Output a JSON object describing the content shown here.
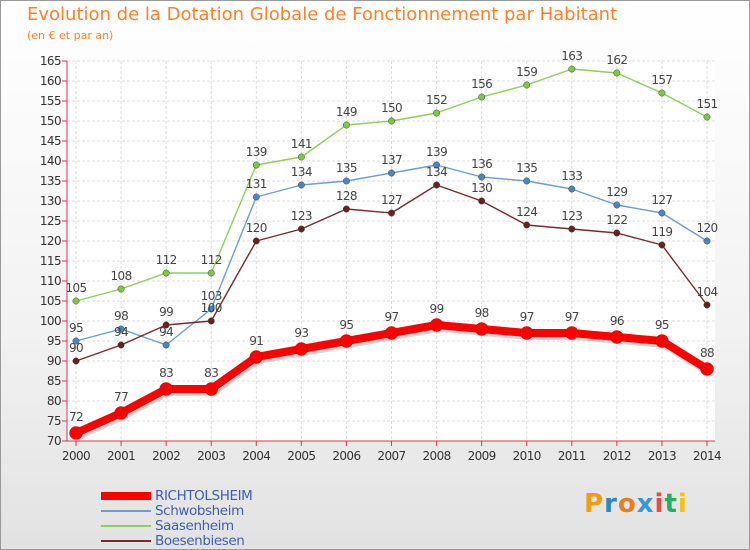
{
  "header": {
    "title": "Evolution de la Dotation Globale de Fonctionnement par Habitant",
    "subtitle": "(en € et par an)"
  },
  "brand": {
    "letters": [
      "P",
      "r",
      "o",
      "x",
      "i",
      "t",
      "i"
    ],
    "colors": [
      "#f39c12",
      "#2e86c1",
      "#e67e22",
      "#3498db",
      "#e74c3c",
      "#27ae60",
      "#f1c40f"
    ]
  },
  "chart_data": {
    "type": "line",
    "title": "Evolution de la Dotation Globale de Fonctionnement par Habitant",
    "subtitle": "(en € et par an)",
    "xlabel": "",
    "ylabel": "",
    "ylim": [
      70,
      165
    ],
    "ytick_step": 5,
    "grid": true,
    "legend_position": "bottom-left",
    "categories": [
      "2000",
      "2001",
      "2002",
      "2003",
      "2004",
      "2005",
      "2006",
      "2007",
      "2008",
      "2009",
      "2010",
      "2011",
      "2012",
      "2013",
      "2014"
    ],
    "series": [
      {
        "name": "Saasenheim",
        "color": "#8fce5b",
        "dot": "#7ac943",
        "bold": false,
        "values": [
          105,
          108,
          112,
          112,
          139,
          141,
          149,
          150,
          152,
          156,
          159,
          163,
          162,
          157,
          151
        ]
      },
      {
        "name": "Schwobsheim",
        "color": "#6a9fd1",
        "dot": "#4a86c5",
        "bold": false,
        "values": [
          95,
          98,
          94,
          103,
          131,
          134,
          135,
          137,
          139,
          136,
          135,
          133,
          129,
          127,
          120
        ]
      },
      {
        "name": "Boesenbiesen",
        "color": "#7a2a2a",
        "dot": "#6b1f1f",
        "bold": false,
        "values": [
          90,
          94,
          99,
          100,
          120,
          123,
          128,
          127,
          134,
          130,
          124,
          123,
          122,
          119,
          104
        ]
      },
      {
        "name": "RICHTOLSHEIM",
        "color": "#ff0000",
        "dot": "#ff0000",
        "bold": true,
        "values": [
          72,
          77,
          83,
          83,
          91,
          93,
          95,
          97,
          99,
          98,
          97,
          97,
          96,
          95,
          88
        ]
      }
    ],
    "legend_order": [
      "RICHTOLSHEIM",
      "Schwobsheim",
      "Saasenheim",
      "Boesenbiesen"
    ]
  }
}
